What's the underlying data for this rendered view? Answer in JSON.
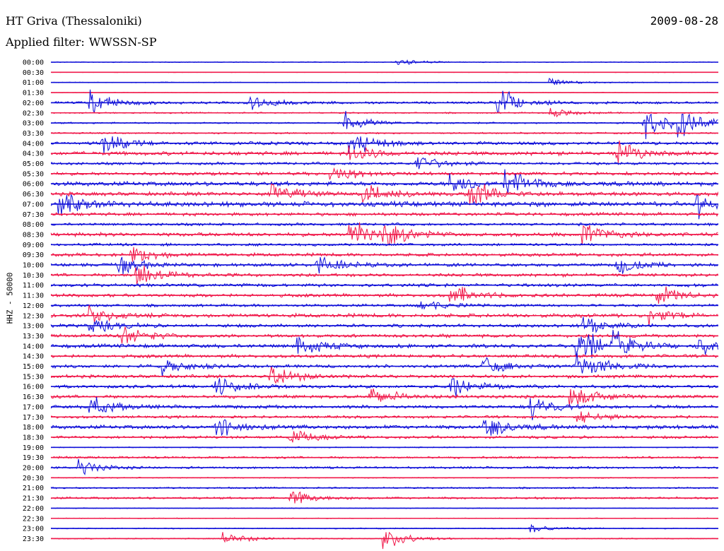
{
  "header": {
    "station": "HT Griva (Thessaloniki)",
    "date": "2009-08-28",
    "filter_label": "Applied filter:",
    "filter_value": "WWSSN-SP"
  },
  "chart_data": {
    "type": "line",
    "title": "HT Griva (Thessaloniki)",
    "subtitle": "Applied filter: WWSSN-SP",
    "ylabel": "HHZ - 50000",
    "xlabel": "",
    "grid": false,
    "colors": [
      "#1010d8",
      "#f0184a"
    ],
    "rows": [
      {
        "label": "00:00",
        "color": "#1010d8",
        "amp": 0.15,
        "events": [
          [
            0.52,
            0.5
          ]
        ]
      },
      {
        "label": "00:30",
        "color": "#f0184a",
        "amp": 0.1,
        "events": []
      },
      {
        "label": "01:00",
        "color": "#1010d8",
        "amp": 0.15,
        "events": [
          [
            0.75,
            0.5
          ]
        ]
      },
      {
        "label": "01:30",
        "color": "#f0184a",
        "amp": 0.1,
        "events": []
      },
      {
        "label": "02:00",
        "color": "#1010d8",
        "amp": 0.45,
        "events": [
          [
            0.06,
            1.4
          ],
          [
            0.3,
            0.8
          ],
          [
            0.67,
            2.0
          ]
        ]
      },
      {
        "label": "02:30",
        "color": "#f0184a",
        "amp": 0.25,
        "events": [
          [
            0.75,
            0.6
          ]
        ]
      },
      {
        "label": "03:00",
        "color": "#1010d8",
        "amp": 0.3,
        "events": [
          [
            0.44,
            1.4
          ],
          [
            0.89,
            1.8
          ],
          [
            0.94,
            2.0
          ]
        ]
      },
      {
        "label": "03:30",
        "color": "#f0184a",
        "amp": 0.3,
        "events": []
      },
      {
        "label": "04:00",
        "color": "#1010d8",
        "amp": 0.6,
        "events": [
          [
            0.08,
            1.2
          ],
          [
            0.45,
            1.6
          ]
        ]
      },
      {
        "label": "04:30",
        "color": "#f0184a",
        "amp": 0.7,
        "events": [
          [
            0.45,
            1.2
          ],
          [
            0.85,
            1.4
          ]
        ]
      },
      {
        "label": "05:00",
        "color": "#1010d8",
        "amp": 0.5,
        "events": [
          [
            0.55,
            1.0
          ]
        ]
      },
      {
        "label": "05:30",
        "color": "#f0184a",
        "amp": 0.6,
        "events": [
          [
            0.42,
            1.2
          ]
        ]
      },
      {
        "label": "06:00",
        "color": "#1010d8",
        "amp": 0.8,
        "events": [
          [
            0.6,
            1.4
          ],
          [
            0.68,
            1.8
          ]
        ]
      },
      {
        "label": "06:30",
        "color": "#f0184a",
        "amp": 0.7,
        "events": [
          [
            0.33,
            1.4
          ],
          [
            0.47,
            1.2
          ],
          [
            0.63,
            1.8
          ]
        ]
      },
      {
        "label": "07:00",
        "color": "#1010d8",
        "amp": 0.9,
        "events": [
          [
            0.01,
            1.8
          ],
          [
            0.97,
            1.4
          ]
        ]
      },
      {
        "label": "07:30",
        "color": "#f0184a",
        "amp": 0.6,
        "events": []
      },
      {
        "label": "08:00",
        "color": "#1010d8",
        "amp": 0.5,
        "events": []
      },
      {
        "label": "08:30",
        "color": "#f0184a",
        "amp": 0.7,
        "events": [
          [
            0.45,
            1.6
          ],
          [
            0.5,
            1.4
          ],
          [
            0.8,
            1.4
          ]
        ]
      },
      {
        "label": "09:00",
        "color": "#1010d8",
        "amp": 0.5,
        "events": []
      },
      {
        "label": "09:30",
        "color": "#f0184a",
        "amp": 0.6,
        "events": [
          [
            0.12,
            1.2
          ]
        ]
      },
      {
        "label": "10:00",
        "color": "#1010d8",
        "amp": 0.6,
        "events": [
          [
            0.1,
            1.2
          ],
          [
            0.4,
            1.2
          ],
          [
            0.85,
            1.0
          ]
        ]
      },
      {
        "label": "10:30",
        "color": "#f0184a",
        "amp": 0.6,
        "events": [
          [
            0.13,
            1.6
          ]
        ]
      },
      {
        "label": "11:00",
        "color": "#1010d8",
        "amp": 0.6,
        "events": []
      },
      {
        "label": "11:30",
        "color": "#f0184a",
        "amp": 0.6,
        "events": [
          [
            0.6,
            1.4
          ],
          [
            0.91,
            1.2
          ]
        ]
      },
      {
        "label": "12:00",
        "color": "#1010d8",
        "amp": 0.5,
        "events": [
          [
            0.55,
            0.8
          ]
        ]
      },
      {
        "label": "12:30",
        "color": "#f0184a",
        "amp": 0.7,
        "events": [
          [
            0.06,
            1.0
          ],
          [
            0.9,
            1.0
          ]
        ]
      },
      {
        "label": "13:00",
        "color": "#1010d8",
        "amp": 0.6,
        "events": [
          [
            0.06,
            1.0
          ],
          [
            0.8,
            1.0
          ]
        ]
      },
      {
        "label": "13:30",
        "color": "#f0184a",
        "amp": 0.6,
        "events": [
          [
            0.11,
            1.2
          ]
        ]
      },
      {
        "label": "14:00",
        "color": "#1010d8",
        "amp": 0.7,
        "events": [
          [
            0.37,
            1.2
          ],
          [
            0.79,
            2.4
          ],
          [
            0.84,
            1.8
          ],
          [
            0.97,
            1.4
          ]
        ]
      },
      {
        "label": "14:30",
        "color": "#f0184a",
        "amp": 0.6,
        "events": []
      },
      {
        "label": "15:00",
        "color": "#1010d8",
        "amp": 0.6,
        "events": [
          [
            0.17,
            1.0
          ],
          [
            0.65,
            1.0
          ],
          [
            0.79,
            2.0
          ]
        ]
      },
      {
        "label": "15:30",
        "color": "#f0184a",
        "amp": 0.6,
        "events": [
          [
            0.33,
            1.4
          ]
        ]
      },
      {
        "label": "16:00",
        "color": "#1010d8",
        "amp": 0.6,
        "events": [
          [
            0.25,
            1.2
          ],
          [
            0.6,
            1.2
          ]
        ]
      },
      {
        "label": "16:30",
        "color": "#f0184a",
        "amp": 0.6,
        "events": [
          [
            0.48,
            1.2
          ],
          [
            0.78,
            1.6
          ]
        ]
      },
      {
        "label": "17:00",
        "color": "#1010d8",
        "amp": 0.6,
        "events": [
          [
            0.06,
            1.4
          ],
          [
            0.72,
            1.4
          ]
        ]
      },
      {
        "label": "17:30",
        "color": "#f0184a",
        "amp": 0.5,
        "events": [
          [
            0.79,
            1.0
          ]
        ]
      },
      {
        "label": "18:00",
        "color": "#1010d8",
        "amp": 0.7,
        "events": [
          [
            0.25,
            1.4
          ],
          [
            0.65,
            1.6
          ]
        ]
      },
      {
        "label": "18:30",
        "color": "#f0184a",
        "amp": 0.5,
        "events": [
          [
            0.36,
            1.0
          ]
        ]
      },
      {
        "label": "19:00",
        "color": "#1010d8",
        "amp": 0.2,
        "events": []
      },
      {
        "label": "19:30",
        "color": "#f0184a",
        "amp": 0.4,
        "events": []
      },
      {
        "label": "20:00",
        "color": "#1010d8",
        "amp": 0.4,
        "events": [
          [
            0.04,
            1.0
          ]
        ]
      },
      {
        "label": "20:30",
        "color": "#f0184a",
        "amp": 0.2,
        "events": []
      },
      {
        "label": "21:00",
        "color": "#1010d8",
        "amp": 0.3,
        "events": []
      },
      {
        "label": "21:30",
        "color": "#f0184a",
        "amp": 0.4,
        "events": [
          [
            0.36,
            1.0
          ]
        ]
      },
      {
        "label": "22:00",
        "color": "#1010d8",
        "amp": 0.15,
        "events": []
      },
      {
        "label": "22:30",
        "color": "#f0184a",
        "amp": 0.15,
        "events": []
      },
      {
        "label": "23:00",
        "color": "#1010d8",
        "amp": 0.2,
        "events": [
          [
            0.72,
            0.6
          ]
        ]
      },
      {
        "label": "23:30",
        "color": "#f0184a",
        "amp": 0.2,
        "events": [
          [
            0.26,
            0.8
          ],
          [
            0.5,
            1.4
          ]
        ]
      }
    ]
  }
}
